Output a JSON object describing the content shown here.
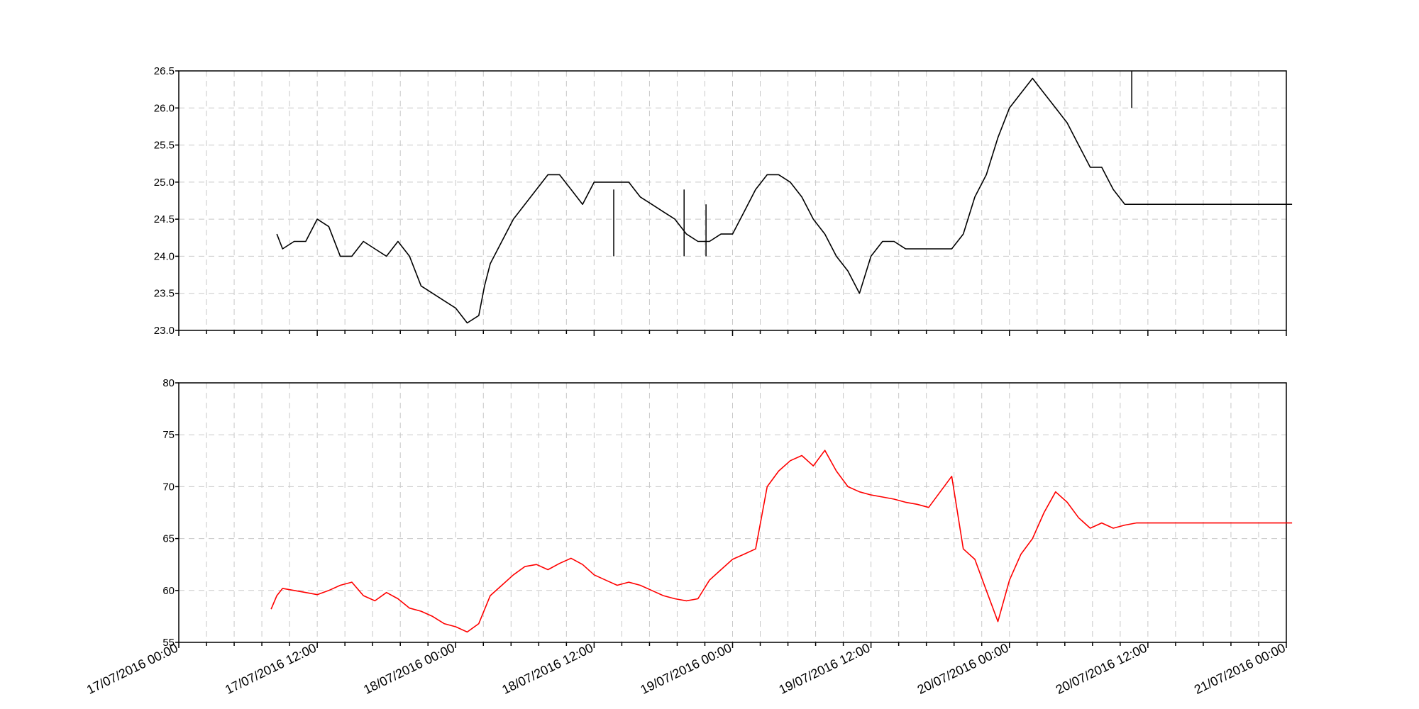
{
  "chart_data": [
    {
      "type": "line",
      "id": "top",
      "color": "#000000",
      "ylim": [
        23.0,
        26.5
      ],
      "y_ticks": [
        {
          "value": 23.0,
          "label": "23.0"
        },
        {
          "value": 23.5,
          "label": "23.5"
        },
        {
          "value": 24.0,
          "label": "24.0"
        },
        {
          "value": 24.5,
          "label": "24.5"
        },
        {
          "value": 25.0,
          "label": "25.0"
        },
        {
          "value": 25.5,
          "label": "25.5"
        },
        {
          "value": 26.0,
          "label": "26.0"
        },
        {
          "value": 26.5,
          "label": "26.5"
        }
      ],
      "x_unit": "hours since 17/07/2016 00:00",
      "x": [
        8.5,
        9,
        10,
        11,
        12,
        13,
        14,
        15,
        16,
        17,
        18,
        19,
        20,
        21,
        22,
        23,
        24,
        25,
        26,
        26.5,
        27,
        28,
        29,
        30,
        31,
        32,
        33,
        34,
        35,
        36,
        37,
        38,
        39,
        40,
        41,
        42,
        43,
        44,
        45,
        46,
        47,
        48,
        49,
        50,
        51,
        52,
        53,
        54,
        55,
        56,
        57,
        58,
        59,
        60,
        61,
        62,
        63,
        64,
        64.5,
        65,
        66,
        67,
        68,
        69,
        70,
        71,
        72,
        73,
        74,
        75,
        76,
        77,
        78,
        79,
        80,
        81,
        82,
        83,
        84,
        85,
        86,
        87,
        88,
        89,
        90,
        91,
        92,
        92.5,
        93,
        94,
        95,
        96,
        96.5
      ],
      "values": [
        24.3,
        24.1,
        24.2,
        24.2,
        24.5,
        24.4,
        24.0,
        24.0,
        24.2,
        24.1,
        24.0,
        24.2,
        24.0,
        23.6,
        23.5,
        23.4,
        23.3,
        23.1,
        23.2,
        23.6,
        23.9,
        24.2,
        24.5,
        24.7,
        24.9,
        25.1,
        25.1,
        24.9,
        24.7,
        25.0,
        25.0,
        25.0,
        25.0,
        24.8,
        24.7,
        24.6,
        24.5,
        24.3,
        24.2,
        24.2,
        24.3,
        24.3,
        24.6,
        24.9,
        25.1,
        25.1,
        25.0,
        24.8,
        24.5,
        24.3,
        24.0,
        23.8,
        23.5,
        24.0,
        24.2,
        24.2,
        24.1,
        24.1,
        24.1,
        24.1,
        24.1,
        24.1,
        24.3,
        24.8,
        25.1,
        25.6,
        26.0,
        26.2,
        26.4,
        26.2,
        26.0,
        25.8,
        25.5,
        25.2,
        25.2,
        24.9,
        24.7,
        24.7,
        24.7,
        24.7,
        24.7,
        24.7,
        24.7,
        24.7,
        24.7,
        24.7,
        24.7,
        24.7,
        24.7,
        24.7,
        24.7,
        24.7,
        24.7
      ],
      "spikes": [
        {
          "x": 37.7,
          "from": 24.9,
          "to": 24.0
        },
        {
          "x": 43.8,
          "from": 24.9,
          "to": 24.0
        },
        {
          "x": 45.7,
          "from": 24.7,
          "to": 24.0
        },
        {
          "x": 82.6,
          "from": 26.0,
          "to": 26.5
        }
      ]
    },
    {
      "type": "line",
      "id": "bottom",
      "color": "#ff0000",
      "ylim": [
        55,
        80
      ],
      "y_ticks": [
        {
          "value": 55,
          "label": "55"
        },
        {
          "value": 60,
          "label": "60"
        },
        {
          "value": 65,
          "label": "65"
        },
        {
          "value": 70,
          "label": "70"
        },
        {
          "value": 75,
          "label": "75"
        },
        {
          "value": 80,
          "label": "80"
        }
      ],
      "x_unit": "hours since 17/07/2016 00:00",
      "x": [
        8,
        8.5,
        9,
        10,
        11,
        12,
        13,
        14,
        15,
        16,
        17,
        18,
        19,
        20,
        21,
        22,
        23,
        24,
        25,
        26,
        27,
        28,
        29,
        30,
        31,
        32,
        33,
        34,
        35,
        36,
        37,
        38,
        39,
        40,
        41,
        42,
        43,
        44,
        45,
        46,
        47,
        48,
        49,
        50,
        51,
        52,
        53,
        54,
        55,
        56,
        57,
        58,
        59,
        60,
        61,
        62,
        63,
        64,
        65,
        66,
        67,
        68,
        69,
        70,
        71,
        72,
        73,
        74,
        75,
        76,
        77,
        78,
        79,
        80,
        81,
        82,
        83,
        84,
        85,
        86,
        87,
        88,
        89,
        90,
        91,
        92,
        93,
        94,
        95,
        96,
        96.5
      ],
      "values": [
        58.2,
        59.5,
        60.2,
        60.0,
        59.8,
        59.6,
        60.0,
        60.5,
        60.8,
        59.5,
        59.0,
        59.8,
        59.2,
        58.3,
        58.0,
        57.5,
        56.8,
        56.5,
        56.0,
        56.8,
        59.5,
        60.5,
        61.5,
        62.3,
        62.5,
        62.0,
        62.6,
        63.1,
        62.5,
        61.5,
        61.0,
        60.5,
        60.8,
        60.5,
        60.0,
        59.5,
        59.2,
        59.0,
        59.2,
        61.0,
        62.0,
        63.0,
        63.5,
        64.0,
        70.0,
        71.5,
        72.5,
        73.0,
        72.0,
        73.5,
        71.5,
        70.0,
        69.5,
        69.2,
        69.0,
        68.8,
        68.5,
        68.3,
        68.0,
        69.5,
        71.0,
        64.0,
        63.0,
        60.0,
        57.0,
        61.0,
        63.5,
        65.0,
        67.5,
        69.5,
        68.5,
        67.0,
        66.0,
        66.5,
        66.0,
        66.3,
        66.5,
        66.5,
        66.5,
        66.5,
        66.5,
        66.5,
        66.5,
        66.5,
        66.5,
        66.5,
        66.5,
        66.5,
        66.5,
        66.5,
        66.5
      ]
    }
  ],
  "x_axis": {
    "labels": [
      {
        "hours": 0,
        "text": "17/07/2016 00:00"
      },
      {
        "hours": 12,
        "text": "17/07/2016 12:00"
      },
      {
        "hours": 24,
        "text": "18/07/2016 00:00"
      },
      {
        "hours": 36,
        "text": "18/07/2016 12:00"
      },
      {
        "hours": 48,
        "text": "19/07/2016 00:00"
      },
      {
        "hours": 60,
        "text": "19/07/2016 12:00"
      },
      {
        "hours": 72,
        "text": "20/07/2016 00:00"
      },
      {
        "hours": 84,
        "text": "20/07/2016 12:00"
      },
      {
        "hours": 96,
        "text": "21/07/2016 00:00"
      }
    ],
    "grid_every_hours": 2.4,
    "range_hours": [
      0,
      96
    ],
    "grid": true
  }
}
